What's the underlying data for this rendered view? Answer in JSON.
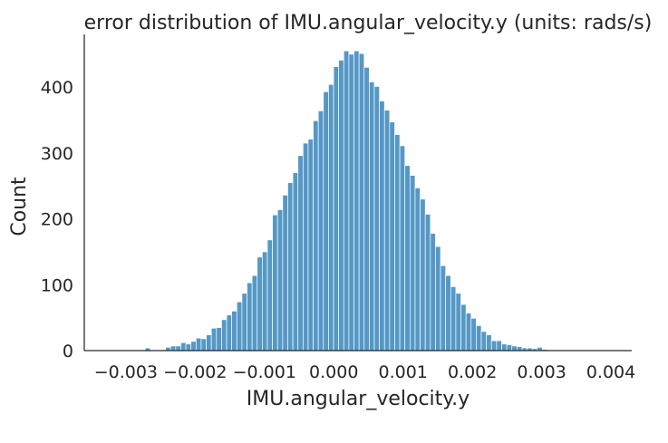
{
  "chart_data": {
    "type": "histogram",
    "title": "error distribution of IMU.angular_velocity.y (units: rads/s)",
    "xlabel": "IMU.angular_velocity.y",
    "ylabel": "Count",
    "xlim": [
      -0.0036,
      0.0043
    ],
    "ylim": [
      0,
      480
    ],
    "bar_color": "#4c92c3",
    "grid": false,
    "x_ticks": [
      {
        "value": -0.003,
        "label": "−0.003"
      },
      {
        "value": -0.002,
        "label": "−0.002"
      },
      {
        "value": -0.001,
        "label": "−0.001"
      },
      {
        "value": 0.0,
        "label": "0.000"
      },
      {
        "value": 0.001,
        "label": "0.001"
      },
      {
        "value": 0.002,
        "label": "0.002"
      },
      {
        "value": 0.003,
        "label": "0.003"
      },
      {
        "value": 0.004,
        "label": "0.004"
      }
    ],
    "y_ticks": [
      {
        "value": 0,
        "label": "0"
      },
      {
        "value": 100,
        "label": "100"
      },
      {
        "value": 200,
        "label": "200"
      },
      {
        "value": 300,
        "label": "300"
      },
      {
        "value": 400,
        "label": "400"
      }
    ],
    "bin_start": -0.00331,
    "bin_width": 7.35e-05,
    "counts": [
      1,
      0,
      0,
      0,
      0,
      0,
      0,
      0,
      4,
      0,
      0,
      0,
      5,
      7,
      7,
      12,
      10,
      14,
      19,
      18,
      24,
      34,
      35,
      47,
      54,
      60,
      74,
      87,
      103,
      114,
      142,
      150,
      168,
      206,
      214,
      236,
      255,
      270,
      296,
      315,
      321,
      349,
      364,
      393,
      404,
      431,
      441,
      455,
      450,
      455,
      451,
      430,
      408,
      401,
      379,
      365,
      347,
      328,
      311,
      281,
      266,
      247,
      230,
      207,
      178,
      158,
      129,
      114,
      97,
      87,
      70,
      57,
      49,
      38,
      29,
      24,
      15,
      15,
      10,
      9,
      7,
      6,
      4,
      4,
      3,
      5,
      2,
      1,
      1,
      0,
      1,
      0,
      1,
      0,
      0,
      1,
      0,
      1,
      0,
      0,
      0
    ]
  }
}
